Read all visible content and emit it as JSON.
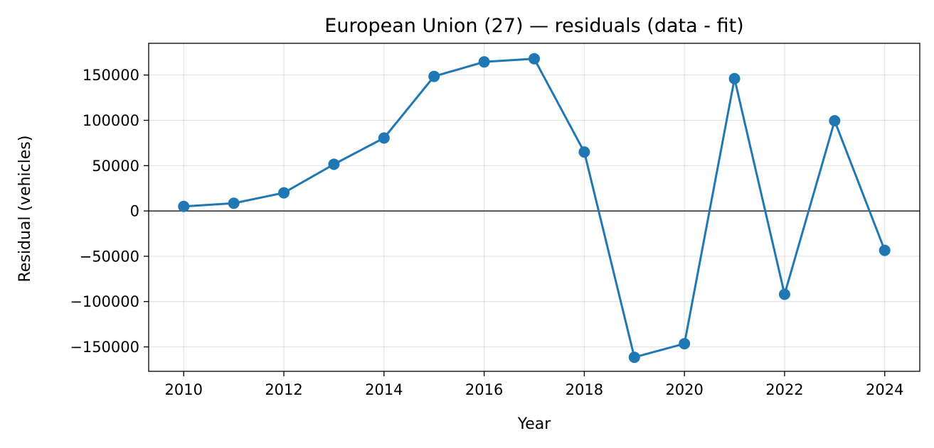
{
  "chart_data": {
    "type": "line",
    "title": "European Union (27) — residuals (data - fit)",
    "xlabel": "Year",
    "ylabel": "Residual (vehicles)",
    "xlim": [
      2009.3,
      2024.7
    ],
    "ylim": [
      -177000,
      185000
    ],
    "x_ticks": [
      2010,
      2012,
      2014,
      2016,
      2018,
      2020,
      2022,
      2024
    ],
    "y_ticks": [
      -150000,
      -100000,
      -50000,
      0,
      50000,
      100000,
      150000
    ],
    "y_tick_labels": [
      "−150000",
      "−100000",
      "−50000",
      "0",
      "50000",
      "100000",
      "150000"
    ],
    "grid": true,
    "zero_line": true,
    "series": [
      {
        "color": "#1f77b4",
        "marker": "circle",
        "x": [
          2010,
          2011,
          2012,
          2013,
          2014,
          2015,
          2016,
          2017,
          2018,
          2019,
          2020,
          2021,
          2022,
          2023,
          2024
        ],
        "y": [
          5000,
          8500,
          20000,
          51500,
          80500,
          148500,
          164500,
          168000,
          65000,
          -161500,
          -146500,
          146000,
          -92000,
          99500,
          -43500
        ]
      }
    ]
  }
}
